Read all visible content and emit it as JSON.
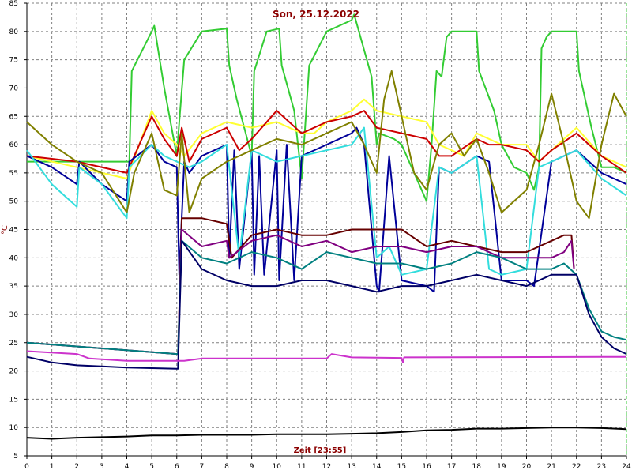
{
  "chart_data": {
    "type": "line",
    "title": "Son, 25.12.2022",
    "xlabel": "Zeit [23:55]",
    "ylabel": "°C",
    "xlim": [
      0,
      24
    ],
    "ylim": [
      5,
      85
    ],
    "xticks": [
      0,
      1,
      2,
      3,
      4,
      5,
      6,
      7,
      8,
      9,
      10,
      11,
      12,
      13,
      14,
      15,
      16,
      17,
      18,
      19,
      20,
      21,
      22,
      23,
      24
    ],
    "yticks": [
      5,
      10,
      15,
      20,
      25,
      30,
      35,
      40,
      45,
      50,
      55,
      60,
      65,
      70,
      75,
      80,
      85
    ],
    "grid": true,
    "colors": {
      "background": "#ffffff",
      "grid": "#808080",
      "axis": "#000000"
    },
    "series": [
      {
        "color": "#33cc33",
        "x": [
          0,
          4,
          4.1,
          4.2,
          5,
          5.1,
          5.5,
          6,
          6.1,
          6.3,
          7,
          8,
          8.1,
          8.4,
          9,
          9.1,
          9.6,
          10.1,
          10.2,
          10.7,
          11,
          11.3,
          12,
          13,
          13.1,
          13.8,
          14,
          14.1,
          14.7,
          15,
          15.5,
          16,
          16.2,
          16.4,
          16.6,
          16.8,
          17,
          18,
          18.1,
          18.7,
          19,
          19.5,
          20,
          20.3,
          20.5,
          20.6,
          20.8,
          21,
          22,
          22.1,
          22.6,
          23,
          23.5,
          24
        ],
        "y": [
          57,
          57,
          57,
          73,
          80,
          81,
          70,
          58,
          64,
          75,
          80,
          80.5,
          74,
          68,
          58,
          73,
          80,
          80.5,
          74,
          66,
          54,
          74,
          80,
          82,
          83,
          72,
          60,
          62,
          61,
          60,
          55,
          50,
          60,
          73,
          72,
          79,
          80,
          80,
          73,
          66,
          60,
          56,
          55,
          52,
          56,
          77,
          79,
          80,
          80,
          73,
          63,
          56,
          56,
          55
        ]
      },
      {
        "color": "#ffff33",
        "x": [
          0,
          2,
          4,
          5,
          5.5,
          6,
          6.3,
          7,
          8,
          9,
          10,
          11,
          11.5,
          12,
          13,
          13.5,
          14,
          15,
          16,
          16.5,
          17,
          17.5,
          18,
          19,
          20,
          20.5,
          21,
          21.5,
          22,
          23,
          24
        ],
        "y": [
          58,
          56,
          54,
          66,
          62,
          60,
          58,
          62,
          64,
          63,
          64,
          62,
          62,
          64,
          66,
          68,
          66,
          65,
          64,
          60,
          59,
          58,
          62,
          60,
          60,
          57,
          59,
          61,
          63,
          58,
          56
        ]
      },
      {
        "color": "#cc0000",
        "x": [
          0,
          2,
          4,
          5,
          5.5,
          6,
          6.2,
          6.5,
          7,
          8,
          8.5,
          9,
          10,
          11,
          12,
          13,
          13.5,
          14,
          15,
          16,
          16.5,
          17,
          18,
          18.5,
          19,
          20,
          20.5,
          21,
          22,
          23,
          24
        ],
        "y": [
          58,
          57,
          55,
          65,
          61,
          58,
          63,
          57,
          61,
          63,
          59,
          61,
          66,
          62,
          64,
          65,
          66,
          63,
          62,
          61,
          58,
          58,
          61,
          60,
          60,
          59,
          57,
          59,
          62,
          58,
          55
        ]
      },
      {
        "color": "#000099",
        "x": [
          0,
          1,
          2,
          2.1,
          3,
          4,
          4.1,
          5,
          5.5,
          6,
          6.1,
          6.3,
          6.5,
          7,
          8,
          8.1,
          8.3,
          8.5,
          9,
          9.1,
          9.3,
          9.5,
          10,
          10.1,
          10.4,
          10.7,
          11,
          12,
          13,
          13.2,
          13.5,
          14,
          14.1,
          14.5,
          15,
          16,
          16.3,
          16.5,
          17,
          18,
          18.5,
          19,
          20,
          20.3,
          21,
          22,
          23,
          24
        ],
        "y": [
          58,
          56,
          53,
          57,
          53,
          50,
          57,
          60,
          57,
          56,
          37,
          57,
          55,
          58,
          60,
          40,
          59,
          38,
          59,
          37,
          58,
          37,
          59,
          36,
          60,
          36,
          58,
          60,
          62,
          63,
          60,
          35,
          34,
          58,
          36,
          35,
          34,
          56,
          55,
          58,
          57,
          36,
          36,
          35,
          57,
          59,
          55,
          53
        ]
      },
      {
        "color": "#33dddd",
        "x": [
          0,
          1,
          2,
          2.1,
          3,
          4,
          4.1,
          5,
          5.5,
          6,
          6.5,
          7,
          8,
          8.5,
          9,
          10,
          11,
          12,
          13,
          13.5,
          14,
          14.5,
          15,
          16,
          16.5,
          17,
          18,
          18.5,
          19,
          20,
          20.5,
          21,
          22,
          23,
          24
        ],
        "y": [
          59,
          53,
          49,
          56,
          53,
          47,
          56,
          60,
          58,
          57,
          56,
          57,
          60,
          40,
          59,
          57,
          58,
          59,
          60,
          63,
          40,
          42,
          37,
          38,
          56,
          55,
          58,
          38,
          37,
          38,
          56,
          57,
          59,
          54,
          51
        ]
      },
      {
        "color": "#808000",
        "x": [
          0,
          1,
          2,
          3,
          4,
          4.3,
          5,
          5.5,
          6,
          6.2,
          6.5,
          7,
          8,
          9,
          10,
          11,
          12,
          13,
          13.5,
          14,
          14.3,
          14.6,
          15,
          15.5,
          16,
          16.5,
          17,
          17.5,
          18,
          18.5,
          19,
          20,
          20.5,
          21,
          21.5,
          22,
          22.5,
          23,
          23.5,
          24
        ],
        "y": [
          64,
          60,
          57,
          55,
          48,
          55,
          62,
          52,
          51,
          62,
          48,
          54,
          57,
          59,
          61,
          60,
          62,
          64,
          60,
          55,
          68,
          73,
          65,
          55,
          52,
          60,
          62,
          58,
          61,
          55,
          48,
          52,
          60,
          69,
          60,
          50,
          47,
          60,
          69,
          65
        ]
      },
      {
        "color": "#660000",
        "x": [
          0,
          6,
          6.05,
          6.2,
          7,
          8,
          8.2,
          9,
          10,
          11,
          12,
          13,
          14,
          15,
          16,
          17,
          18,
          19,
          20,
          21,
          21.5,
          21.8,
          21.9
        ],
        "y": [
          25,
          23,
          23,
          47,
          47,
          46,
          40,
          44,
          45,
          44,
          44,
          45,
          45,
          45,
          42,
          43,
          42,
          41,
          41,
          43,
          44,
          44,
          38
        ]
      },
      {
        "color": "#800080",
        "x": [
          0,
          6,
          6.05,
          6.2,
          7,
          8,
          8.1,
          9,
          10,
          11,
          12,
          13,
          14,
          15,
          16,
          17,
          18,
          19,
          20,
          21,
          21.5,
          21.8,
          21.9
        ],
        "y": [
          25,
          23,
          23,
          45,
          42,
          43,
          40,
          43,
          44,
          42,
          43,
          41,
          42,
          42,
          41,
          42,
          42,
          40,
          40,
          40,
          41,
          43,
          38
        ]
      },
      {
        "color": "#008080",
        "x": [
          0,
          6,
          6.05,
          6.2,
          7,
          8,
          9,
          10,
          11,
          12,
          13,
          14,
          15,
          16,
          17,
          18,
          19,
          20,
          21,
          21.5,
          22,
          22.5,
          23,
          23.5,
          24
        ],
        "y": [
          25,
          23,
          23,
          43,
          40,
          39,
          41,
          40,
          38,
          41,
          40,
          39,
          39,
          38,
          39,
          41,
          40,
          38,
          38,
          39,
          37,
          31,
          27,
          26,
          25.5
        ]
      },
      {
        "color": "#000066",
        "x": [
          0,
          1,
          2,
          3,
          4,
          5,
          6,
          6.05,
          6.2,
          7,
          8,
          9,
          10,
          11,
          12,
          13,
          14,
          15,
          16,
          17,
          18,
          19,
          20,
          21,
          22,
          22.5,
          23,
          23.5,
          24
        ],
        "y": [
          22.5,
          21.5,
          21,
          20.8,
          20.6,
          20.5,
          20.4,
          20.4,
          43,
          38,
          36,
          35,
          35,
          36,
          36,
          35,
          34,
          35,
          35,
          36,
          37,
          36,
          35,
          37,
          37,
          30,
          26,
          24,
          23
        ]
      },
      {
        "color": "#cc33cc",
        "x": [
          0,
          2,
          2.5,
          4,
          6,
          6.1,
          6.3,
          7,
          8,
          12,
          12.2,
          13,
          15,
          15.05,
          15.1,
          24
        ],
        "y": [
          23.5,
          23,
          22.2,
          21.8,
          21.8,
          21.8,
          21.8,
          22.2,
          22.2,
          22.2,
          23,
          22.4,
          22.3,
          21.5,
          22.4,
          22.5
        ]
      },
      {
        "color": "#000000",
        "x": [
          0,
          1,
          2,
          3,
          4,
          5,
          6,
          7,
          8,
          9,
          10,
          11,
          12,
          13,
          14,
          15,
          16,
          17,
          18,
          19,
          20,
          21,
          22,
          23,
          24
        ],
        "y": [
          8.2,
          8.0,
          8.2,
          8.3,
          8.4,
          8.6,
          8.6,
          8.7,
          8.7,
          8.7,
          8.8,
          8.8,
          8.8,
          8.9,
          9.0,
          9.2,
          9.5,
          9.6,
          9.8,
          9.8,
          9.9,
          10.0,
          10.0,
          9.9,
          9.7
        ]
      }
    ]
  }
}
